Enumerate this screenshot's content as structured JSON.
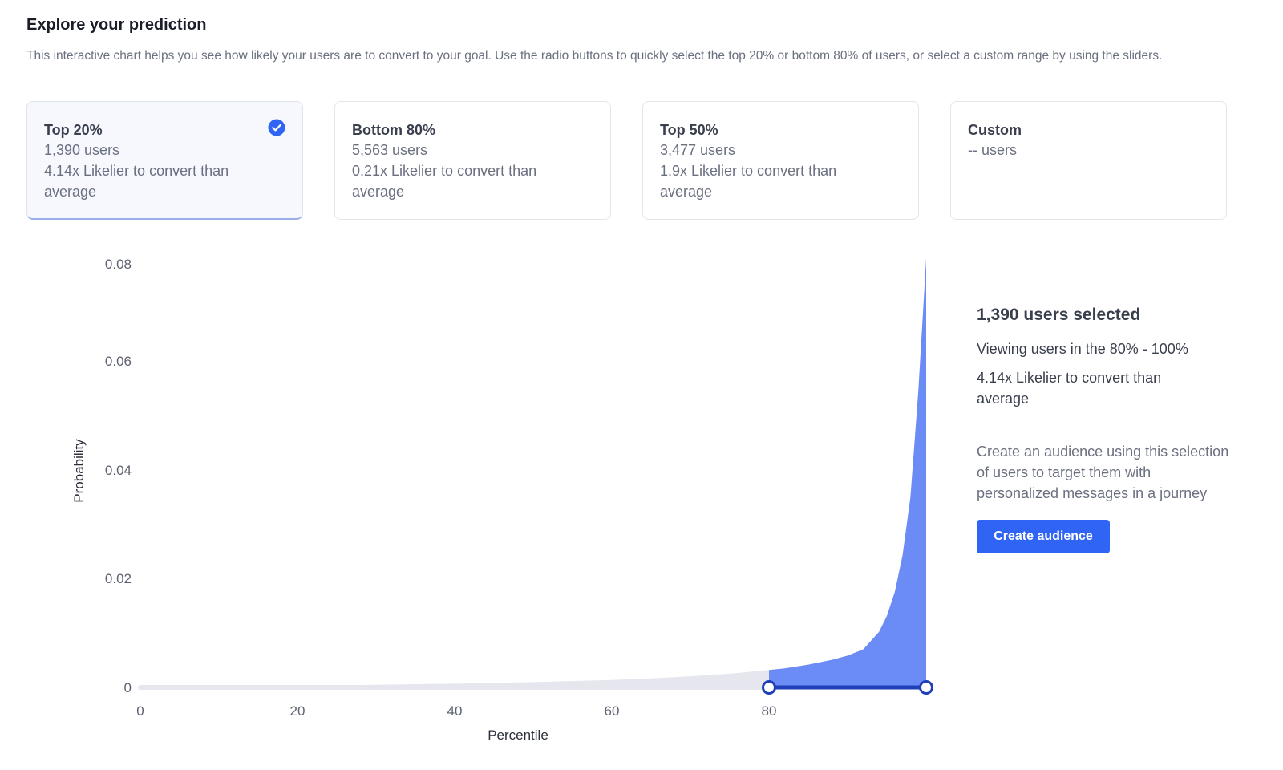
{
  "header": {
    "title": "Explore your prediction",
    "description": "This interactive chart helps you see how likely your users are to convert to your goal. Use the radio buttons to quickly select the top 20% or bottom 80% of users, or select a custom range by using the sliders."
  },
  "cards": [
    {
      "title": "Top 20%",
      "users": "1,390 users",
      "lift": "4.14x Likelier to convert than average",
      "selected": true
    },
    {
      "title": "Bottom 80%",
      "users": "5,563 users",
      "lift": "0.21x Likelier to convert than average",
      "selected": false
    },
    {
      "title": "Top 50%",
      "users": "3,477 users",
      "lift": "1.9x Likelier to convert than average",
      "selected": false
    },
    {
      "title": "Custom",
      "users": "-- users",
      "lift": "",
      "selected": false
    }
  ],
  "summary": {
    "count": "1,390 users selected",
    "range": "Viewing users in the 80% - 100%",
    "lift": "4.14x Likelier to convert than average",
    "cta_text": "Create an audience using this selection of users to target them with personalized messages in a journey",
    "button_label": "Create audience"
  },
  "colors": {
    "accent": "#2f64f5",
    "selected_fill": "#6b8cf5",
    "unselected_fill": "#e6e7ee",
    "slider": "#1f3fb8"
  },
  "chart_data": {
    "type": "area",
    "xlabel": "Percentile",
    "ylabel": "Probability",
    "xlim": [
      0,
      100
    ],
    "ylim": [
      0,
      0.08
    ],
    "x_ticks": [
      "0",
      "20",
      "40",
      "60",
      "80"
    ],
    "y_ticks": [
      "0",
      "0.02",
      "0.04",
      "0.06",
      "0.08"
    ],
    "x": [
      0,
      10,
      20,
      30,
      40,
      50,
      60,
      65,
      70,
      75,
      80,
      82,
      85,
      88,
      90,
      92,
      94,
      95,
      96,
      97,
      98,
      99,
      100
    ],
    "values": [
      0.0001,
      0.0002,
      0.0003,
      0.0005,
      0.0007,
      0.001,
      0.0014,
      0.0017,
      0.0021,
      0.0026,
      0.0033,
      0.0036,
      0.0043,
      0.0052,
      0.006,
      0.0072,
      0.0105,
      0.0135,
      0.018,
      0.025,
      0.036,
      0.056,
      0.081
    ],
    "selection": [
      80,
      100
    ]
  }
}
